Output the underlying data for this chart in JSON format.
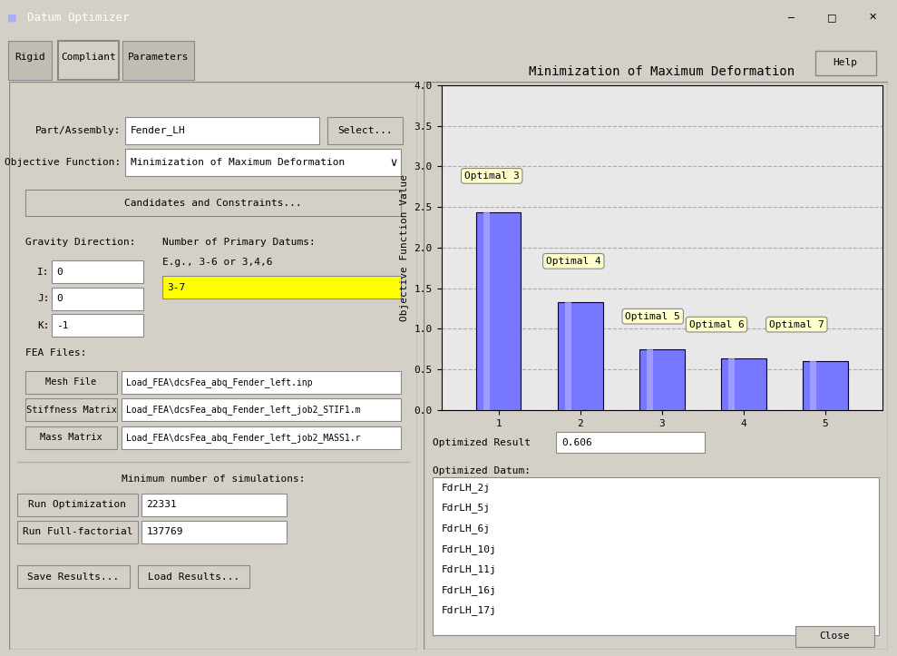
{
  "title": "Datum Optimizer",
  "window_bg": "#d4d0c8",
  "tabs": [
    "Rigid",
    "Compliant",
    "Parameters"
  ],
  "active_tab": "Compliant",
  "part_assembly": "Fender_LH",
  "objective_function": "Minimization of Maximum Deformation",
  "gravity_i": "0",
  "gravity_j": "0",
  "gravity_k": "-1",
  "primary_datums_label": "Number of Primary Datums:",
  "primary_datums_eg": "E.g., 3-6 or 3,4,6",
  "primary_datums_value": "3-7",
  "primary_datums_bg": "#ffff00",
  "mesh_file": "Load_FEA\\dcsFea_abq_Fender_left.inp",
  "stiffness_matrix": "Load_FEA\\dcsFea_abq_Fender_left_job2_STIF1.m",
  "mass_matrix": "Load_FEA\\dcsFea_abq_Fender_left_job2_MASS1.r",
  "min_simulations_label": "Minimum number of simulations:",
  "run_optimization_value": "22331",
  "run_full_factorial_value": "137769",
  "chart_title": "Minimization of Maximum Deformation",
  "chart_ylabel": "Objective Function Value",
  "bar_x": [
    1,
    2,
    3,
    4,
    5
  ],
  "bar_heights": [
    2.44,
    1.33,
    0.75,
    0.64,
    0.606
  ],
  "bar_color_face": "#7777ff",
  "bar_color_edge": "#000033",
  "chart_ylim": [
    0.0,
    4.0
  ],
  "chart_yticks": [
    0.0,
    0.5,
    1.0,
    1.5,
    2.0,
    2.5,
    3.0,
    3.5,
    4.0
  ],
  "chart_xticks": [
    1,
    2,
    3,
    4,
    5
  ],
  "annotation_offsets": [
    [
      "Optimal 3",
      0.58,
      2.85
    ],
    [
      "Optimal 4",
      1.58,
      1.8
    ],
    [
      "Optimal 5",
      2.55,
      1.12
    ],
    [
      "Optimal 6",
      3.33,
      1.02
    ],
    [
      "Optimal 7",
      4.31,
      1.02
    ]
  ],
  "annotation_box_color": "#ffffcc",
  "optimized_result": "0.606",
  "optimized_datum_items": [
    "FdrLH_2j",
    "FdrLH_5j",
    "FdrLH_6j",
    "FdrLH_10j",
    "FdrLH_11j",
    "FdrLH_16j",
    "FdrLH_17j"
  ],
  "chart_bg": "#e8e8e8",
  "panel_bg": "#d4d0c8",
  "input_bg": "#ffffff",
  "button_bg": "#d4d0c8"
}
